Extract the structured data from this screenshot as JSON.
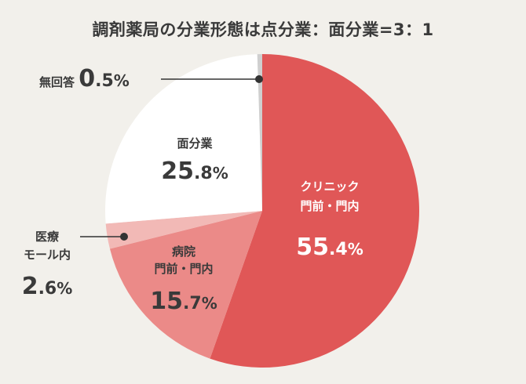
{
  "title": "調剤薬局の分業形態は点分業：面分業=3：1",
  "chart_data": {
    "type": "pie",
    "title": "調剤薬局の分業形態は点分業：面分業=3：1",
    "start_angle_deg": 0,
    "direction": "clockwise",
    "slices": [
      {
        "label_lines": [
          "クリニック",
          "門前・門内"
        ],
        "value": 55.4,
        "int": "55",
        "dec": ".4",
        "pct": "%",
        "color": "#e05757",
        "label_color": "#ffffff"
      },
      {
        "label_lines": [
          "病院",
          "門前・門内"
        ],
        "value": 15.7,
        "int": "15",
        "dec": ".7",
        "pct": "%",
        "color": "#eb8a88",
        "label_color": "#3a3a3a"
      },
      {
        "label_lines": [
          "医療",
          "モール内"
        ],
        "value": 2.6,
        "int": "2",
        "dec": ".6",
        "pct": "%",
        "color": "#f2b9b6",
        "label_color": "#3a3a3a"
      },
      {
        "label_lines": [
          "面分業"
        ],
        "value": 25.8,
        "int": "25",
        "dec": ".8",
        "pct": "%",
        "color": "#ffffff",
        "label_color": "#3a3a3a"
      },
      {
        "label_lines": [
          "無回答"
        ],
        "value": 0.5,
        "int": "0",
        "dec": ".5",
        "pct": "%",
        "color": "#cfcfcf",
        "label_color": "#3a3a3a"
      }
    ],
    "legend": "none"
  }
}
